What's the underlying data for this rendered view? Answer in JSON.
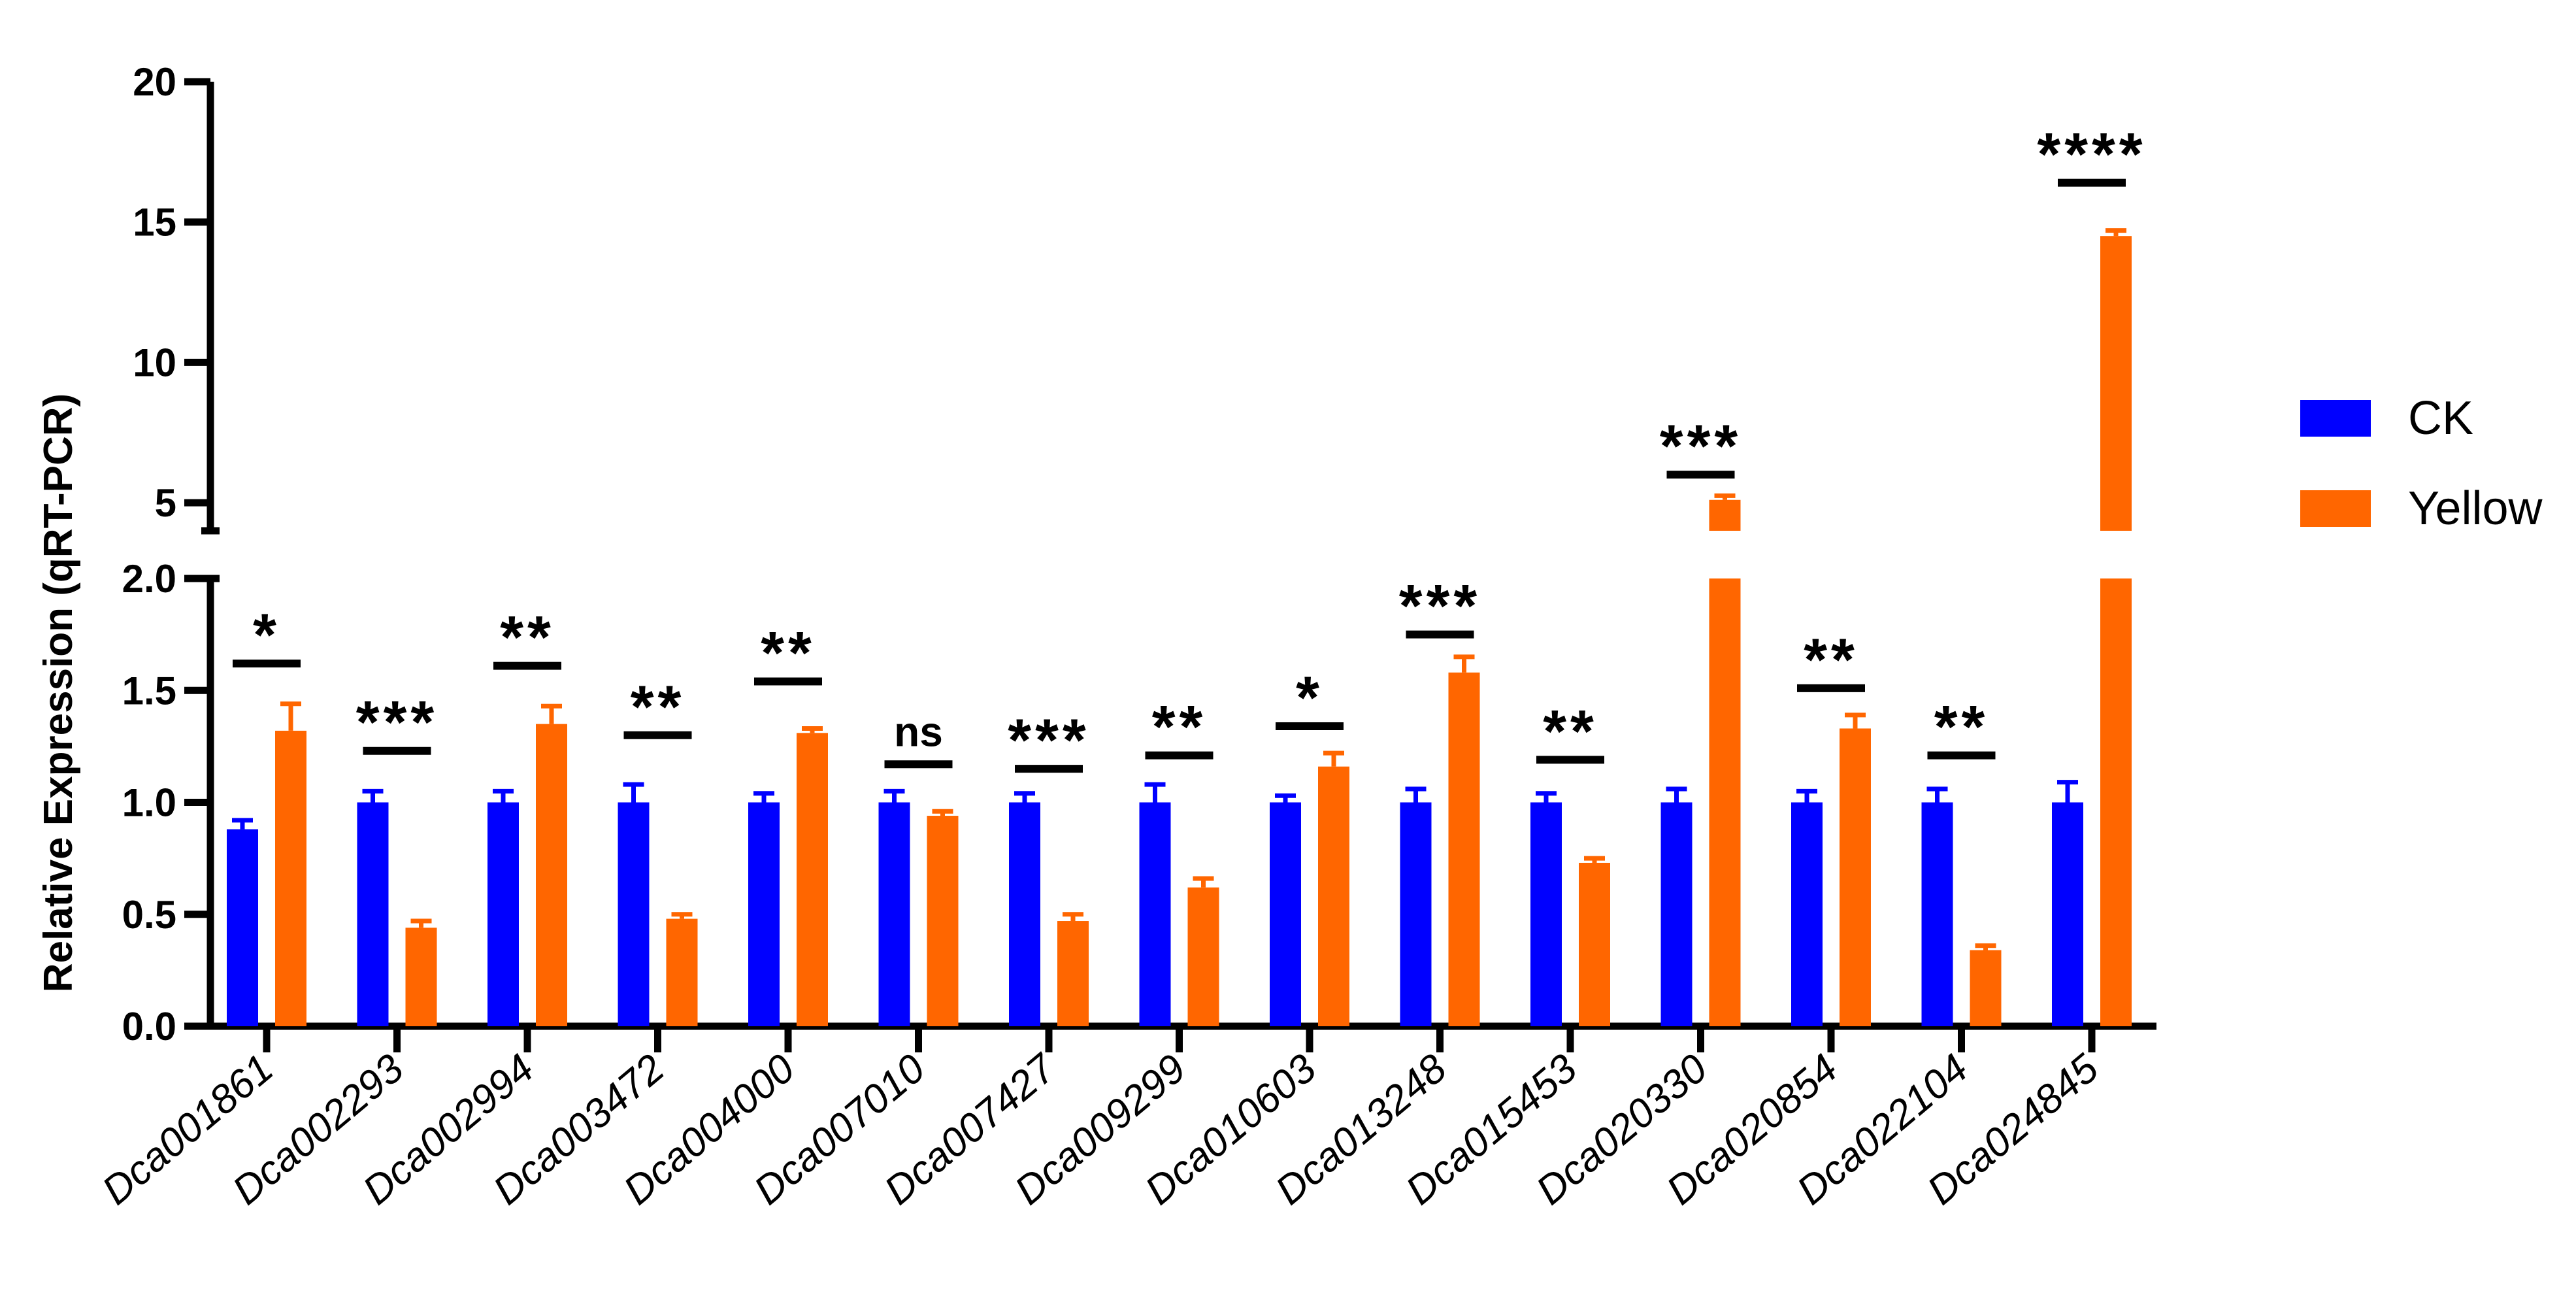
{
  "chart_data": {
    "type": "bar",
    "ylabel": "Relative Expression (qRT-PCR)",
    "y_axis_lower": {
      "range": [
        0,
        2.0
      ],
      "ticks": [
        "0.0",
        "0.5",
        "1.0",
        "1.5",
        "2.0"
      ]
    },
    "y_axis_upper": {
      "range": [
        4,
        20
      ],
      "ticks": [
        "5",
        "10",
        "15",
        "20"
      ]
    },
    "categories": [
      "Dca001861",
      "Dca002293",
      "Dca002994",
      "Dca003472",
      "Dca004000",
      "Dca007010",
      "Dca007427",
      "Dca009299",
      "Dca010603",
      "Dca013248",
      "Dca015453",
      "Dca020330",
      "Dca020854",
      "Dca022104",
      "Dca024845"
    ],
    "series": [
      {
        "name": "CK",
        "color": "#0000ff",
        "values": [
          0.88,
          1.0,
          1.0,
          1.0,
          1.0,
          1.0,
          1.0,
          1.0,
          1.0,
          1.0,
          1.0,
          1.0,
          1.0,
          1.0,
          1.0
        ],
        "errors": [
          0.04,
          0.05,
          0.05,
          0.08,
          0.04,
          0.05,
          0.04,
          0.08,
          0.03,
          0.06,
          0.04,
          0.06,
          0.05,
          0.06,
          0.09
        ]
      },
      {
        "name": "Yellow",
        "color": "#ff6600",
        "values": [
          1.32,
          0.44,
          1.35,
          0.48,
          1.31,
          0.94,
          0.47,
          0.62,
          1.16,
          1.58,
          0.73,
          5.1,
          1.33,
          0.34,
          14.5
        ],
        "errors": [
          0.12,
          0.03,
          0.08,
          0.02,
          0.02,
          0.02,
          0.03,
          0.04,
          0.06,
          0.07,
          0.02,
          0.15,
          0.06,
          0.02,
          0.2
        ]
      }
    ],
    "significance": [
      "*",
      "***",
      "**",
      "**",
      "**",
      "ns",
      "***",
      "**",
      "*",
      "***",
      "**",
      "***",
      "**",
      "**",
      "****"
    ],
    "sig_levels": [
      1.62,
      1.23,
      1.61,
      1.3,
      1.54,
      1.17,
      1.15,
      1.21,
      1.34,
      1.75,
      1.19,
      6.0,
      1.51,
      1.21,
      16.4
    ],
    "legend": {
      "position": "right",
      "entries": [
        "CK",
        "Yellow"
      ]
    }
  }
}
